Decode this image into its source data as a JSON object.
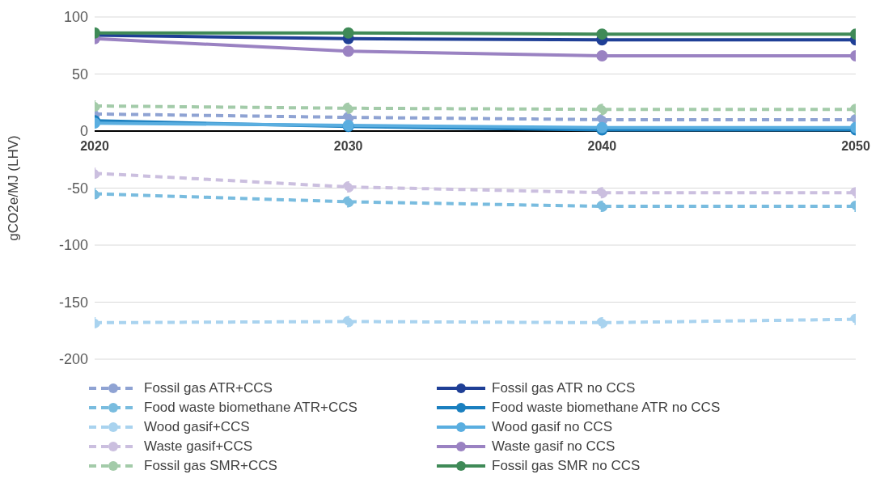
{
  "chart_data": {
    "type": "line",
    "ylabel": "gCO2e/MJ (LHV)",
    "categories": [
      "2020",
      "2030",
      "2040",
      "2050"
    ],
    "ylim": [
      -200,
      100
    ],
    "yticks": [
      -200,
      -150,
      -100,
      -50,
      0,
      50,
      100
    ],
    "grid": "y",
    "legend": "bottom",
    "marker": "circle",
    "series": [
      {
        "name": "Fossil gas ATR+CCS",
        "color": "#8fa3d3",
        "line_style": "dashed",
        "values": [
          15,
          12,
          10,
          10
        ]
      },
      {
        "name": "Food waste biomethane ATR+CCS",
        "color": "#79bcdf",
        "line_style": "dashed",
        "values": [
          -55,
          -62,
          -66,
          -66
        ]
      },
      {
        "name": "Wood gasif+CCS",
        "color": "#a9d3ef",
        "line_style": "dashed",
        "values": [
          -168,
          -167,
          -168,
          -165
        ]
      },
      {
        "name": "Waste gasif+CCS",
        "color": "#cbbfdf",
        "line_style": "dashed",
        "values": [
          -37,
          -49,
          -54,
          -54
        ]
      },
      {
        "name": "Fossil gas SMR+CCS",
        "color": "#a3cba9",
        "line_style": "dashed",
        "values": [
          22,
          20,
          19,
          19
        ]
      },
      {
        "name": "Fossil gas ATR no CCS",
        "color": "#1f3f96",
        "line_style": "solid",
        "values": [
          84,
          81,
          80,
          80
        ]
      },
      {
        "name": "Food waste biomethane ATR no CCS",
        "color": "#1a7fbf",
        "line_style": "solid",
        "values": [
          9,
          4,
          1,
          1
        ]
      },
      {
        "name": "Wood gasif no CCS",
        "color": "#5aaee0",
        "line_style": "solid",
        "values": [
          7,
          5,
          3,
          3
        ]
      },
      {
        "name": "Waste gasif no CCS",
        "color": "#9a82c2",
        "line_style": "solid",
        "values": [
          81,
          70,
          66,
          66
        ]
      },
      {
        "name": "Fossil gas SMR no CCS",
        "color": "#3f8a57",
        "line_style": "solid",
        "values": [
          86,
          86,
          85,
          85
        ]
      }
    ]
  }
}
